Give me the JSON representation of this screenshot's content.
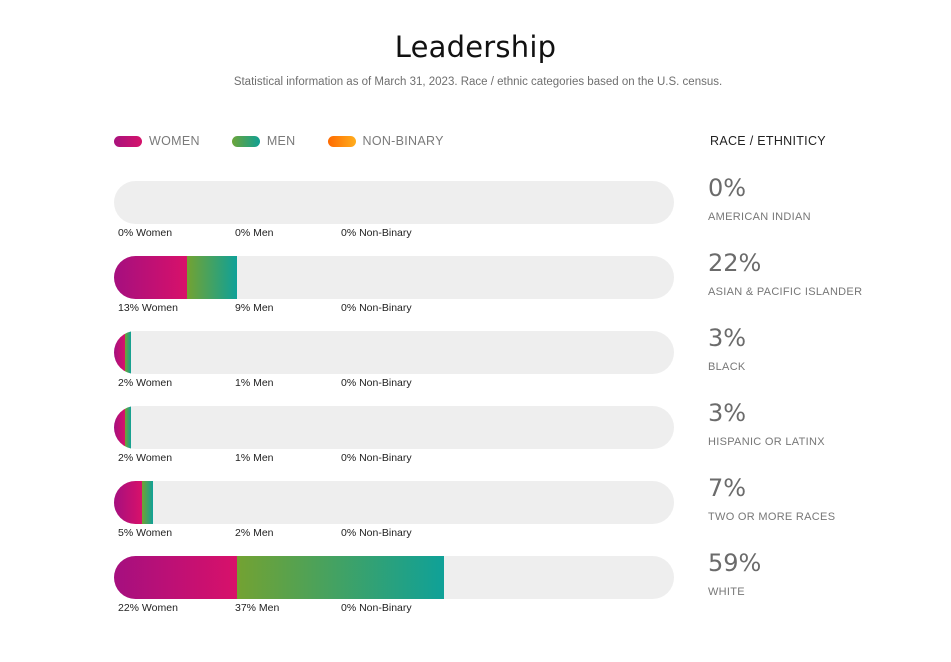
{
  "header": {
    "title": "Leadership",
    "subtitle": "Statistical information as of March 31, 2023. Race / ethnic categories based on the U.S. census."
  },
  "legend": [
    {
      "label": "WOMEN",
      "color_start": "#a8127d",
      "color_end": "#d5136b"
    },
    {
      "label": "MEN",
      "color_start": "#6ca43a",
      "color_end": "#10a093"
    },
    {
      "label": "NON-BINARY",
      "color_start": "#ff6a00",
      "color_end": "#ffae1e"
    }
  ],
  "race_heading": "RACE / ETHNITICY",
  "rows": [
    {
      "women": 0,
      "men": 0,
      "nb": 0,
      "women_label": "0% Women",
      "men_label": "0% Men",
      "nb_label": "0% Non-Binary",
      "total": "0%",
      "category": "AMERICAN INDIAN"
    },
    {
      "women": 13,
      "men": 9,
      "nb": 0,
      "women_label": "13% Women",
      "men_label": "9% Men",
      "nb_label": "0% Non-Binary",
      "total": "22%",
      "category": "ASIAN & PACIFIC ISLANDER"
    },
    {
      "women": 2,
      "men": 1,
      "nb": 0,
      "women_label": "2% Women",
      "men_label": "1% Men",
      "nb_label": "0% Non-Binary",
      "total": "3%",
      "category": "BLACK"
    },
    {
      "women": 2,
      "men": 1,
      "nb": 0,
      "women_label": "2% Women",
      "men_label": "1% Men",
      "nb_label": "0% Non-Binary",
      "total": "3%",
      "category": "HISPANIC OR LATINX"
    },
    {
      "women": 5,
      "men": 2,
      "nb": 0,
      "women_label": "5% Women",
      "men_label": "2% Men",
      "nb_label": "0% Non-Binary",
      "total": "7%",
      "category": "TWO OR MORE RACES"
    },
    {
      "women": 22,
      "men": 37,
      "nb": 0,
      "women_label": "22% Women",
      "men_label": "37% Men",
      "nb_label": "0% Non-Binary",
      "total": "59%",
      "category": "WHITE"
    }
  ],
  "chart_data": {
    "type": "bar",
    "orientation": "horizontal",
    "stacked": true,
    "title": "Leadership",
    "subtitle": "Statistical information as of March 31, 2023. Race / ethnic categories based on the U.S. census.",
    "categories": [
      "American Indian",
      "Asian & Pacific Islander",
      "Black",
      "Hispanic or Latinx",
      "Two or More Races",
      "White"
    ],
    "series": [
      {
        "name": "Women",
        "values": [
          0,
          13,
          2,
          2,
          5,
          22
        ]
      },
      {
        "name": "Men",
        "values": [
          0,
          9,
          1,
          1,
          2,
          37
        ]
      },
      {
        "name": "Non-Binary",
        "values": [
          0,
          0,
          0,
          0,
          0,
          0
        ]
      }
    ],
    "totals": [
      0,
      22,
      3,
      3,
      7,
      59
    ],
    "xlim": [
      0,
      100
    ],
    "unit": "%",
    "legend_position": "top-left",
    "grid": false
  }
}
